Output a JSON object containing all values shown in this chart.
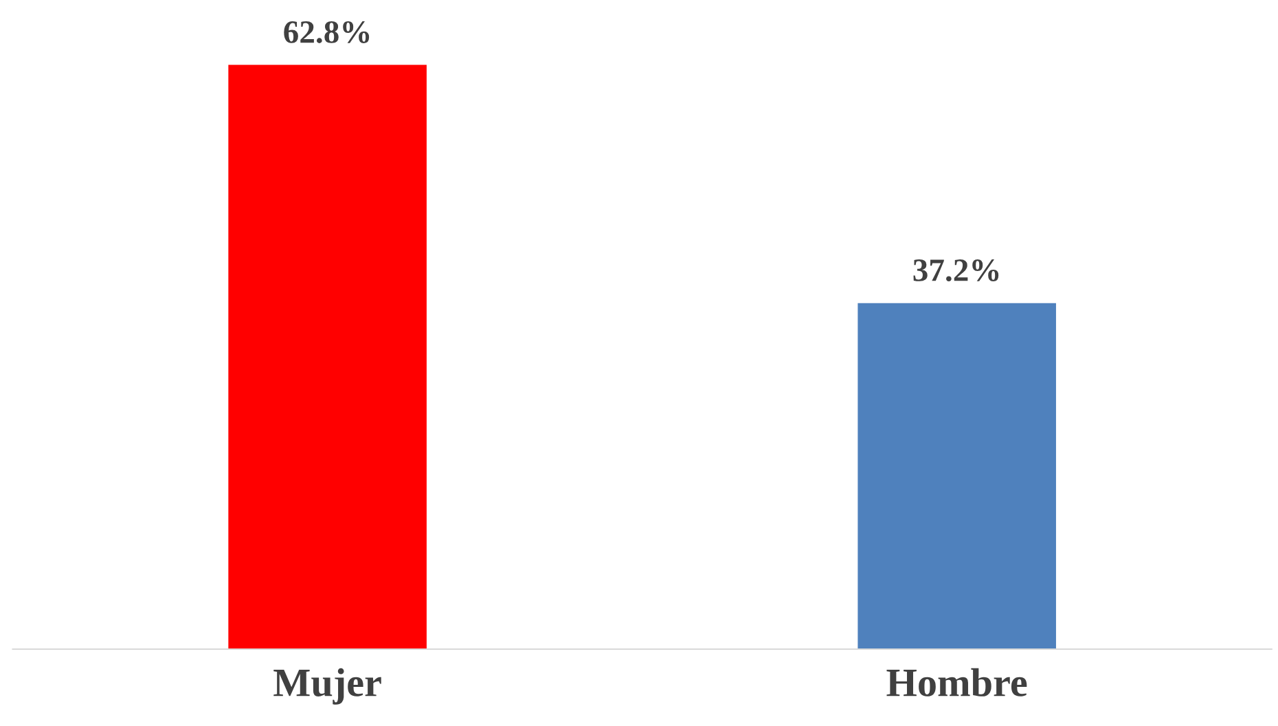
{
  "chart_data": {
    "type": "bar",
    "categories": [
      "Mujer",
      "Hombre"
    ],
    "values": [
      62.8,
      37.2
    ],
    "colors": [
      "#ff0000",
      "#4f81bd"
    ],
    "value_labels": [
      "62.8%",
      "37.2%"
    ],
    "tick_labels": "x",
    "grid": false,
    "legend": false
  }
}
